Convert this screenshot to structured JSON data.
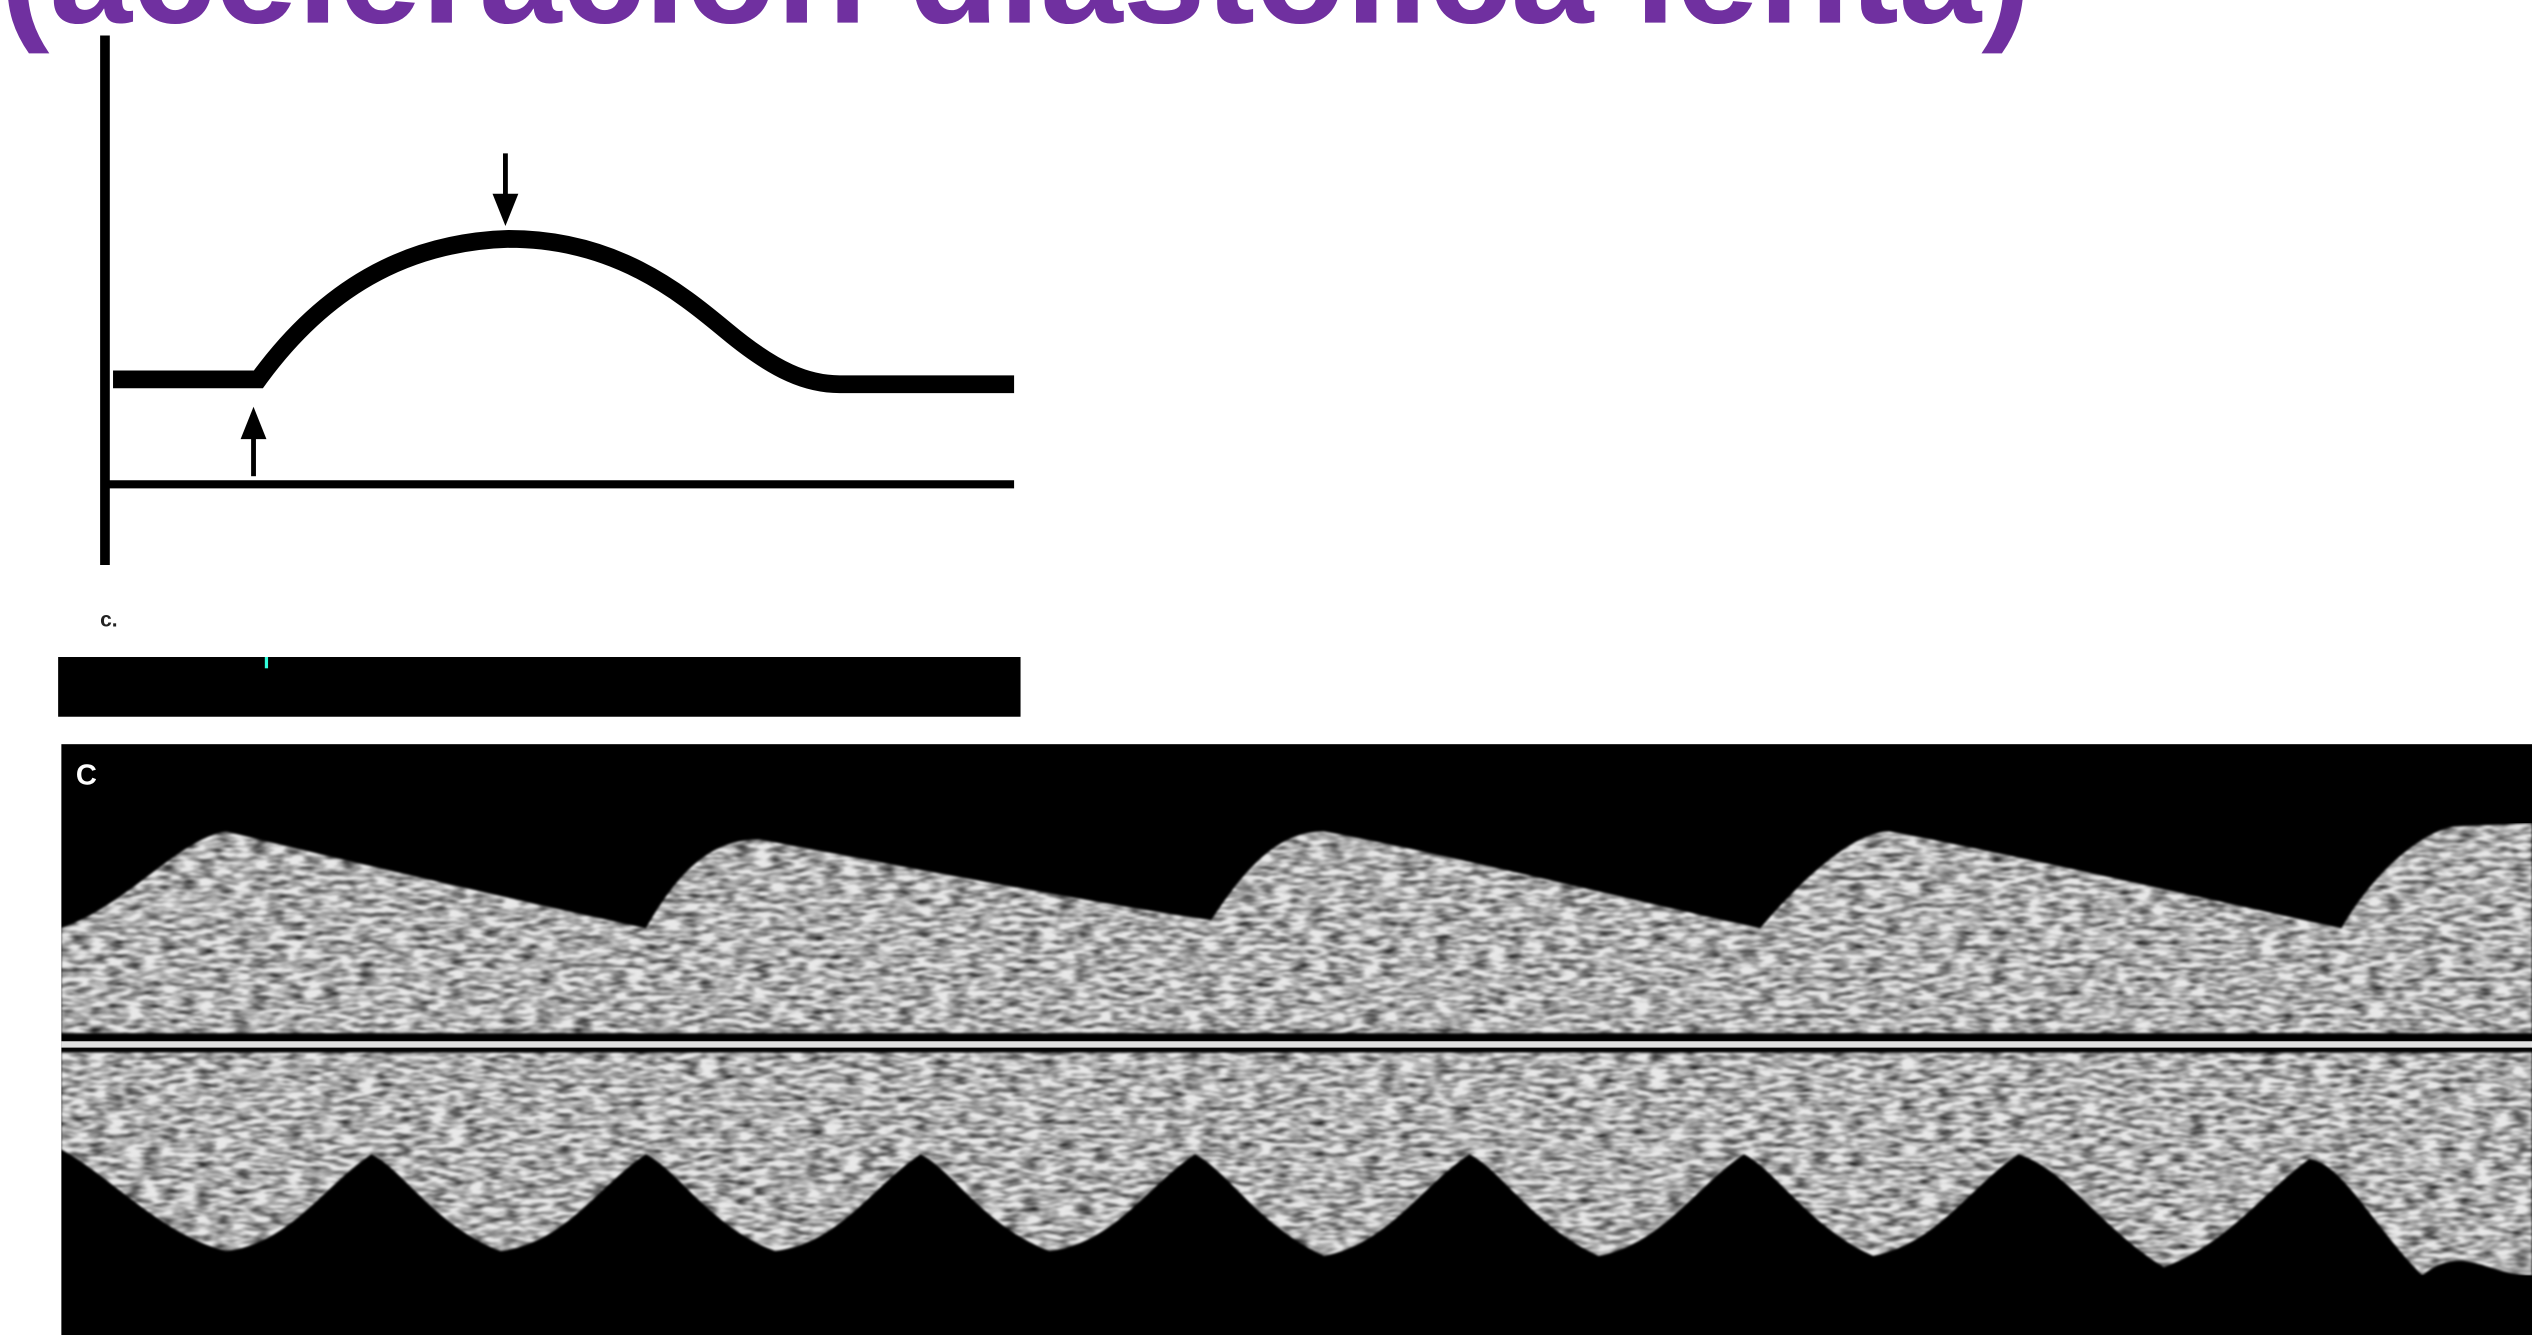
{
  "title": "(aceleración diastólica lenta)",
  "diagram": {
    "label": "c."
  },
  "doppler": {
    "label": "C"
  }
}
